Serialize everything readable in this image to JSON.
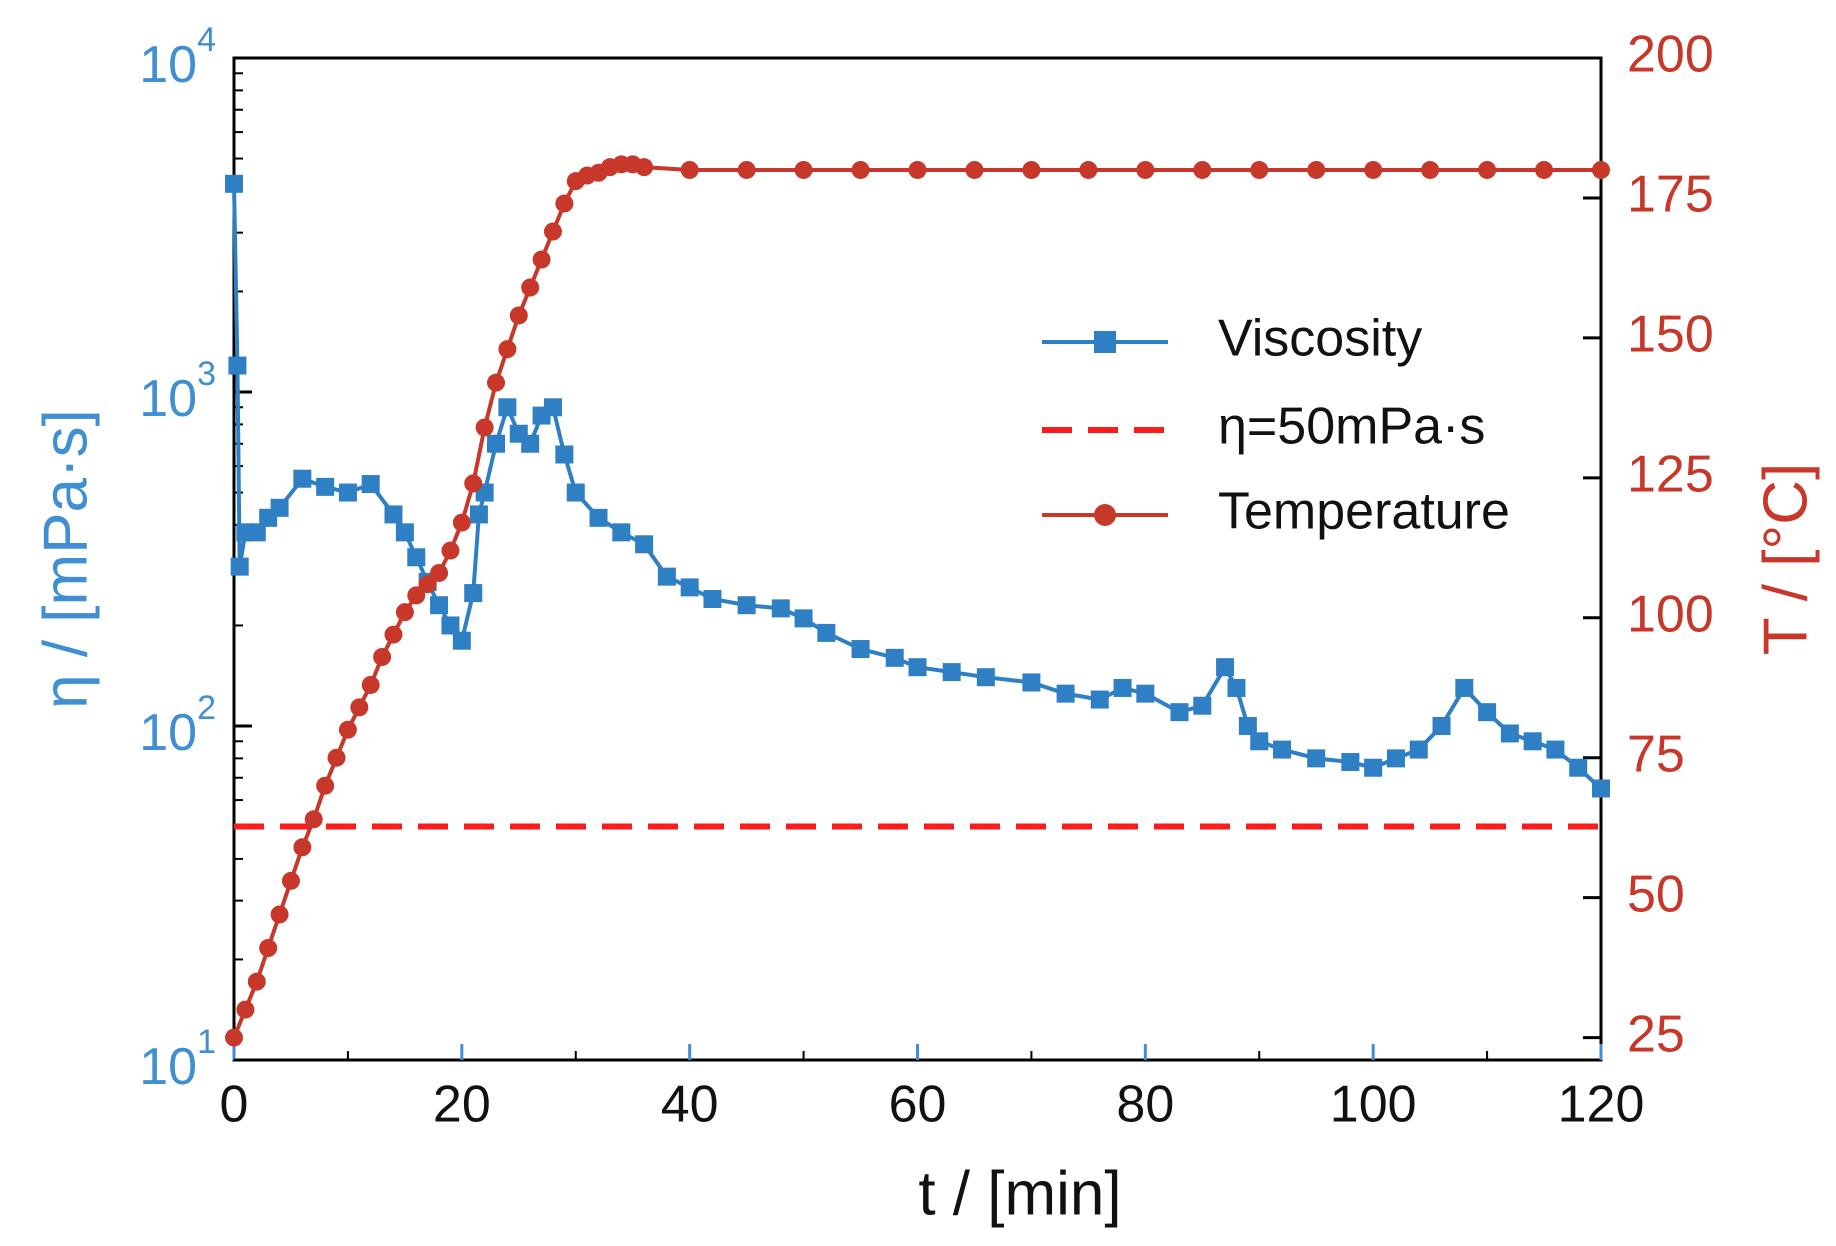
{
  "chart_data": {
    "type": "line",
    "xlabel": "t / [min]",
    "ylabel": "η / [mPa·s]",
    "y2label": "T / [°C]",
    "xlim": [
      0,
      120
    ],
    "xticks": [
      0,
      20,
      40,
      60,
      80,
      100,
      120
    ],
    "ylim": [
      10,
      10000
    ],
    "yscale": "log",
    "yticks": [
      {
        "value": 10,
        "label": "10",
        "exponent": "1"
      },
      {
        "value": 100,
        "label": "10",
        "exponent": "2"
      },
      {
        "value": 1000,
        "label": "10",
        "exponent": "3"
      },
      {
        "value": 10000,
        "label": "10",
        "exponent": "4"
      }
    ],
    "y2lim": [
      21,
      200
    ],
    "y2ticks": [
      25,
      50,
      75,
      100,
      125,
      150,
      175,
      200
    ],
    "ycolor": "#3f8fd2",
    "y2color": "#c8382a",
    "legend": "right",
    "series": [
      {
        "name": "Viscosity",
        "color": "#2f7fc4",
        "marker": "square",
        "x": [
          0,
          0.3,
          0.5,
          1,
          2,
          3,
          4,
          6,
          8,
          10,
          12,
          14,
          15,
          16,
          17,
          18,
          19,
          20,
          21,
          21.5,
          22,
          23,
          24,
          25,
          26,
          27,
          28,
          29,
          30,
          32,
          34,
          36,
          38,
          40,
          42,
          45,
          48,
          50,
          52,
          55,
          58,
          60,
          63,
          66,
          70,
          73,
          76,
          78,
          80,
          83,
          85,
          87,
          88,
          89,
          90,
          92,
          95,
          98,
          100,
          102,
          104,
          106,
          108,
          110,
          112,
          114,
          116,
          118,
          120
        ],
        "values": [
          4200,
          1200,
          300,
          380,
          380,
          420,
          450,
          550,
          520,
          500,
          530,
          430,
          380,
          320,
          270,
          230,
          200,
          180,
          250,
          430,
          500,
          700,
          900,
          750,
          700,
          850,
          900,
          650,
          500,
          420,
          380,
          350,
          280,
          260,
          240,
          230,
          225,
          210,
          190,
          170,
          160,
          150,
          145,
          140,
          135,
          125,
          120,
          130,
          125,
          110,
          115,
          150,
          130,
          100,
          90,
          85,
          80,
          78,
          75,
          80,
          85,
          100,
          130,
          110,
          95,
          90,
          85,
          75,
          65
        ]
      },
      {
        "name": "η=50mPa·s",
        "color": "#ff1a1a",
        "marker": "none",
        "dash": true,
        "x": [
          0,
          120
        ],
        "values": [
          50,
          50
        ]
      },
      {
        "name": "Temperature",
        "color": "#c8382a",
        "marker": "circle",
        "axis": "y2",
        "x": [
          0,
          1,
          2,
          3,
          4,
          5,
          6,
          7,
          8,
          9,
          10,
          11,
          12,
          13,
          14,
          15,
          16,
          17,
          18,
          19,
          20,
          21,
          22,
          23,
          24,
          25,
          26,
          27,
          28,
          29,
          30,
          31,
          32,
          33,
          34,
          35,
          36,
          40,
          45,
          50,
          55,
          60,
          65,
          70,
          75,
          80,
          85,
          90,
          95,
          100,
          105,
          110,
          115,
          120
        ],
        "values": [
          25,
          30,
          35,
          41,
          47,
          53,
          59,
          64,
          70,
          75,
          80,
          84,
          88,
          93,
          97,
          101,
          104,
          106,
          108,
          112,
          117,
          124,
          134,
          142,
          148,
          154,
          159,
          164,
          169,
          174,
          178,
          179,
          179.5,
          180.5,
          181,
          181,
          180.5,
          180,
          180,
          180,
          180,
          180,
          180,
          180,
          180,
          180,
          180,
          180,
          180,
          180,
          180,
          180,
          180,
          180
        ]
      }
    ]
  }
}
